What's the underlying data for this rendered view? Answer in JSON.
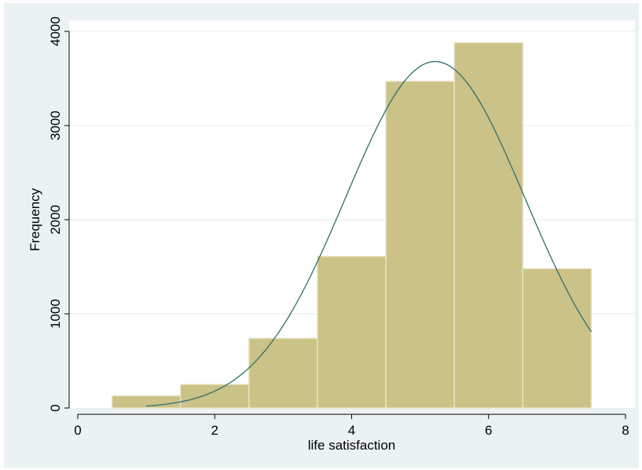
{
  "chart_data": {
    "type": "bar",
    "title": "",
    "xlabel": "life satisfaction",
    "ylabel": "Frequency",
    "xlim": [
      0,
      8
    ],
    "ylim": [
      0,
      4000
    ],
    "xticks": [
      0,
      2,
      4,
      6,
      8
    ],
    "yticks": [
      0,
      1000,
      2000,
      3000,
      4000
    ],
    "grid": true,
    "bins": [
      {
        "from": 0.5,
        "to": 1.5,
        "value": 130
      },
      {
        "from": 1.5,
        "to": 2.5,
        "value": 250
      },
      {
        "from": 2.5,
        "to": 3.5,
        "value": 740
      },
      {
        "from": 3.5,
        "to": 4.5,
        "value": 1610
      },
      {
        "from": 4.5,
        "to": 5.5,
        "value": 3470
      },
      {
        "from": 5.5,
        "to": 6.5,
        "value": 3880
      },
      {
        "from": 6.5,
        "to": 7.5,
        "value": 1480
      }
    ],
    "normal_curve": {
      "mean": 5.22,
      "sd": 1.31,
      "peak": 3680,
      "x_range": [
        1,
        7.5
      ]
    },
    "colors": {
      "bar_fill": "#cbc287",
      "bar_edge": "#e8e3c2",
      "curve": "#2e6f6f",
      "background": "#eaf2f3",
      "plot_area": "#ffffff",
      "grid": "#e4ecee"
    }
  }
}
